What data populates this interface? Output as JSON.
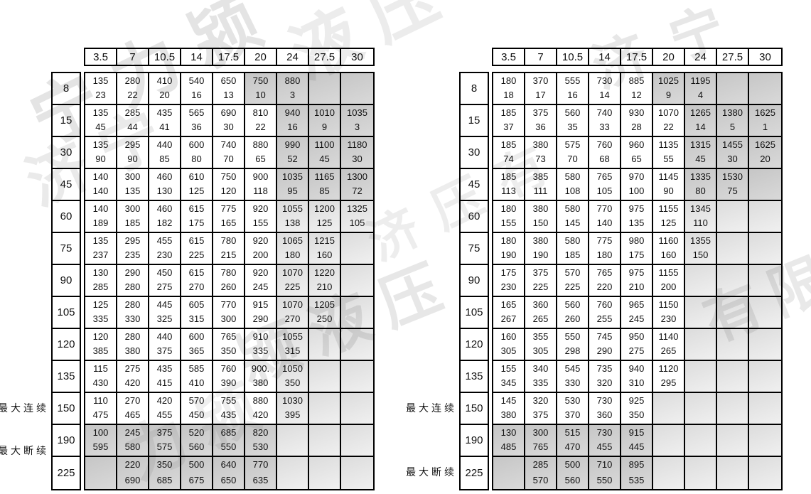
{
  "watermarks": {
    "items": [
      {
        "text": "宁力颍"
      },
      {
        "text": "液压"
      },
      {
        "text": "济宁"
      },
      {
        "text": "济宁"
      },
      {
        "text": "颍液压"
      },
      {
        "text": "有限"
      },
      {
        "text": "济压有"
      },
      {
        "text": "力颍"
      }
    ]
  },
  "chart_data": [
    {
      "type": "table",
      "title": "",
      "col_headers": [
        "3.5",
        "7",
        "10.5",
        "14",
        "17.5",
        "20",
        "24",
        "27.5",
        "30"
      ],
      "row_headers": [
        "8",
        "15",
        "30",
        "45",
        "60",
        "75",
        "90",
        "105",
        "120",
        "135",
        "150",
        "190",
        "225"
      ],
      "annotations": {
        "continuous": "最大连续",
        "intermittent": "最大断续"
      },
      "cell_format": "[top_value, bottom_value, shade] shade:0=white,1=light-gray,2=gray",
      "rows": [
        [
          [
            "135",
            "23",
            0
          ],
          [
            "280",
            "22",
            0
          ],
          [
            "410",
            "20",
            0
          ],
          [
            "540",
            "16",
            0
          ],
          [
            "650",
            "13",
            0
          ],
          [
            "750",
            "10",
            2
          ],
          [
            "880",
            "3",
            2
          ],
          [
            "",
            "",
            2
          ],
          [
            "",
            "",
            2
          ]
        ],
        [
          [
            "135",
            "45",
            0
          ],
          [
            "285",
            "44",
            0
          ],
          [
            "435",
            "41",
            0
          ],
          [
            "565",
            "36",
            0
          ],
          [
            "690",
            "30",
            0
          ],
          [
            "810",
            "22",
            0
          ],
          [
            "940",
            "16",
            2
          ],
          [
            "1010",
            "9",
            2
          ],
          [
            "1035",
            "3",
            2
          ]
        ],
        [
          [
            "135",
            "90",
            0
          ],
          [
            "295",
            "90",
            0
          ],
          [
            "440",
            "85",
            0
          ],
          [
            "600",
            "80",
            0
          ],
          [
            "740",
            "70",
            0
          ],
          [
            "880",
            "65",
            0
          ],
          [
            "990",
            "52",
            2
          ],
          [
            "1100",
            "45",
            2
          ],
          [
            "1180",
            "30",
            2
          ]
        ],
        [
          [
            "140",
            "140",
            0
          ],
          [
            "300",
            "135",
            0
          ],
          [
            "460",
            "130",
            0
          ],
          [
            "610",
            "125",
            0
          ],
          [
            "750",
            "120",
            0
          ],
          [
            "900",
            "118",
            0
          ],
          [
            "1035",
            "95",
            2
          ],
          [
            "1165",
            "85",
            2
          ],
          [
            "1300",
            "72",
            2
          ]
        ],
        [
          [
            "140",
            "189",
            0
          ],
          [
            "300",
            "185",
            0
          ],
          [
            "460",
            "182",
            0
          ],
          [
            "615",
            "175",
            0
          ],
          [
            "775",
            "165",
            0
          ],
          [
            "920",
            "155",
            0
          ],
          [
            "1055",
            "138",
            1
          ],
          [
            "1200",
            "125",
            1
          ],
          [
            "1325",
            "105",
            1
          ]
        ],
        [
          [
            "135",
            "237",
            0
          ],
          [
            "295",
            "235",
            0
          ],
          [
            "455",
            "230",
            0
          ],
          [
            "615",
            "225",
            0
          ],
          [
            "780",
            "215",
            0
          ],
          [
            "920",
            "200",
            0
          ],
          [
            "1065",
            "180",
            1
          ],
          [
            "1215",
            "160",
            1
          ],
          [
            "",
            "",
            1
          ]
        ],
        [
          [
            "130",
            "285",
            0
          ],
          [
            "290",
            "280",
            0
          ],
          [
            "450",
            "275",
            0
          ],
          [
            "615",
            "270",
            0
          ],
          [
            "780",
            "260",
            0
          ],
          [
            "920",
            "245",
            0
          ],
          [
            "1070",
            "225",
            1
          ],
          [
            "1220",
            "210",
            1
          ],
          [
            "",
            "",
            1
          ]
        ],
        [
          [
            "125",
            "335",
            0
          ],
          [
            "280",
            "330",
            0
          ],
          [
            "445",
            "325",
            0
          ],
          [
            "605",
            "315",
            0
          ],
          [
            "770",
            "300",
            0
          ],
          [
            "915",
            "290",
            0
          ],
          [
            "1070",
            "270",
            1
          ],
          [
            "1205",
            "250",
            1
          ],
          [
            "",
            "",
            1
          ]
        ],
        [
          [
            "120",
            "385",
            0
          ],
          [
            "280",
            "380",
            0
          ],
          [
            "440",
            "375",
            0
          ],
          [
            "600",
            "365",
            0
          ],
          [
            "765",
            "350",
            0
          ],
          [
            "910",
            "335",
            0
          ],
          [
            "1055",
            "315",
            1
          ],
          [
            "",
            "",
            1
          ],
          [
            "",
            "",
            1
          ]
        ],
        [
          [
            "115",
            "430",
            0
          ],
          [
            "275",
            "420",
            0
          ],
          [
            "435",
            "415",
            0
          ],
          [
            "585",
            "410",
            0
          ],
          [
            "760",
            "390",
            0
          ],
          [
            "900.",
            "380",
            0
          ],
          [
            "1050",
            "350",
            1
          ],
          [
            "",
            "",
            1
          ],
          [
            "",
            "",
            1
          ]
        ],
        [
          [
            "110",
            "475",
            0
          ],
          [
            "270",
            "465",
            0
          ],
          [
            "420",
            "455",
            0
          ],
          [
            "570",
            "450",
            0
          ],
          [
            "755",
            "435",
            0
          ],
          [
            "880",
            "420",
            0
          ],
          [
            "1030",
            "395",
            1
          ],
          [
            "",
            "",
            1
          ],
          [
            "",
            "",
            1
          ]
        ],
        [
          [
            "100",
            "595",
            2
          ],
          [
            "245",
            "580",
            2
          ],
          [
            "375",
            "575",
            2
          ],
          [
            "520",
            "560",
            2
          ],
          [
            "685",
            "550",
            2
          ],
          [
            "820",
            "530",
            2
          ],
          [
            "",
            "",
            1
          ],
          [
            "",
            "",
            1
          ],
          [
            "",
            "",
            1
          ]
        ],
        [
          [
            "",
            "",
            2
          ],
          [
            "220",
            "690",
            2
          ],
          [
            "350",
            "685",
            2
          ],
          [
            "500",
            "675",
            2
          ],
          [
            "640",
            "650",
            2
          ],
          [
            "770",
            "635",
            2
          ],
          [
            "",
            "",
            1
          ],
          [
            "",
            "",
            1
          ],
          [
            "",
            "",
            1
          ]
        ]
      ]
    },
    {
      "type": "table",
      "title": "",
      "col_headers": [
        "3.5",
        "7",
        "10.5",
        "14",
        "17.5",
        "20",
        "24",
        "27.5",
        "30"
      ],
      "row_headers": [
        "8",
        "15",
        "30",
        "45",
        "60",
        "75",
        "90",
        "105",
        "120",
        "135",
        "150",
        "190",
        "225"
      ],
      "annotations": {
        "continuous": "最大连续",
        "intermittent": "最大断续"
      },
      "cell_format": "[top_value, bottom_value, shade] shade:0=white,1=light-gray,2=gray",
      "rows": [
        [
          [
            "180",
            "18",
            0
          ],
          [
            "370",
            "17",
            0
          ],
          [
            "555",
            "16",
            0
          ],
          [
            "730",
            "14",
            0
          ],
          [
            "885",
            "12",
            0
          ],
          [
            "1025",
            "9",
            2
          ],
          [
            "1195",
            "4",
            2
          ],
          [
            "",
            "",
            2
          ],
          [
            "",
            "",
            2
          ]
        ],
        [
          [
            "185",
            "37",
            0
          ],
          [
            "375",
            "36",
            0
          ],
          [
            "560",
            "35",
            0
          ],
          [
            "740",
            "33",
            0
          ],
          [
            "930",
            "28",
            0
          ],
          [
            "1070",
            "22",
            0
          ],
          [
            "1265",
            "14",
            2
          ],
          [
            "1380",
            "5",
            2
          ],
          [
            "1625",
            "1",
            2
          ]
        ],
        [
          [
            "185",
            "74",
            0
          ],
          [
            "380",
            "73",
            0
          ],
          [
            "575",
            "70",
            0
          ],
          [
            "760",
            "68",
            0
          ],
          [
            "960",
            "65",
            0
          ],
          [
            "1135",
            "55",
            0
          ],
          [
            "1315",
            "45",
            2
          ],
          [
            "1455",
            "30",
            2
          ],
          [
            "1625",
            "20",
            2
          ]
        ],
        [
          [
            "185",
            "113",
            0
          ],
          [
            "385",
            "111",
            0
          ],
          [
            "580",
            "108",
            0
          ],
          [
            "765",
            "105",
            0
          ],
          [
            "970",
            "100",
            0
          ],
          [
            "1145",
            "90",
            0
          ],
          [
            "1335",
            "80",
            2
          ],
          [
            "1530",
            "75",
            2
          ],
          [
            "",
            "",
            2
          ]
        ],
        [
          [
            "180",
            "155",
            0
          ],
          [
            "380",
            "150",
            0
          ],
          [
            "580",
            "145",
            0
          ],
          [
            "770",
            "140",
            0
          ],
          [
            "975",
            "135",
            0
          ],
          [
            "1155",
            "125",
            0
          ],
          [
            "1345",
            "110",
            1
          ],
          [
            "",
            "",
            1
          ],
          [
            "",
            "",
            1
          ]
        ],
        [
          [
            "180",
            "190",
            0
          ],
          [
            "380",
            "190",
            0
          ],
          [
            "580",
            "185",
            0
          ],
          [
            "775",
            "180",
            0
          ],
          [
            "980",
            "175",
            0
          ],
          [
            "1160",
            "160",
            0
          ],
          [
            "1355",
            "150",
            1
          ],
          [
            "",
            "",
            1
          ],
          [
            "",
            "",
            1
          ]
        ],
        [
          [
            "175",
            "230",
            0
          ],
          [
            "375",
            "225",
            0
          ],
          [
            "570",
            "225",
            0
          ],
          [
            "765",
            "220",
            0
          ],
          [
            "975",
            "210",
            0
          ],
          [
            "1155",
            "200",
            0
          ],
          [
            "",
            "",
            1
          ],
          [
            "",
            "",
            1
          ],
          [
            "",
            "",
            1
          ]
        ],
        [
          [
            "165",
            "267",
            0
          ],
          [
            "360",
            "265",
            0
          ],
          [
            "560",
            "260",
            0
          ],
          [
            "760",
            "255",
            0
          ],
          [
            "965",
            "245",
            0
          ],
          [
            "1150",
            "230",
            0
          ],
          [
            "",
            "",
            1
          ],
          [
            "",
            "",
            1
          ],
          [
            "",
            "",
            1
          ]
        ],
        [
          [
            "160",
            "305",
            0
          ],
          [
            "355",
            "305",
            0
          ],
          [
            "550",
            "298",
            0
          ],
          [
            "745",
            "290",
            0
          ],
          [
            "950",
            "275",
            0
          ],
          [
            "1140",
            "265",
            0
          ],
          [
            "",
            "",
            1
          ],
          [
            "",
            "",
            1
          ],
          [
            "",
            "",
            1
          ]
        ],
        [
          [
            "155",
            "345",
            0
          ],
          [
            "340",
            "335",
            0
          ],
          [
            "545",
            "330",
            0
          ],
          [
            "735",
            "320",
            0
          ],
          [
            "940",
            "310",
            0
          ],
          [
            "1120",
            "295",
            0
          ],
          [
            "",
            "",
            1
          ],
          [
            "",
            "",
            1
          ],
          [
            "",
            "",
            1
          ]
        ],
        [
          [
            "145",
            "380",
            0
          ],
          [
            "320",
            "375",
            0
          ],
          [
            "530",
            "370",
            0
          ],
          [
            "730",
            "360",
            0
          ],
          [
            "925",
            "350",
            0
          ],
          [
            "",
            "",
            1
          ],
          [
            "",
            "",
            1
          ],
          [
            "",
            "",
            1
          ],
          [
            "",
            "",
            1
          ]
        ],
        [
          [
            "130",
            "485",
            2
          ],
          [
            "300",
            "765",
            2
          ],
          [
            "515",
            "470",
            2
          ],
          [
            "730",
            "455",
            2
          ],
          [
            "915",
            "445",
            2
          ],
          [
            "",
            "",
            1
          ],
          [
            "",
            "",
            1
          ],
          [
            "",
            "",
            1
          ],
          [
            "",
            "",
            1
          ]
        ],
        [
          [
            "",
            "",
            2
          ],
          [
            "285",
            "570",
            2
          ],
          [
            "500",
            "560",
            2
          ],
          [
            "710",
            "550",
            2
          ],
          [
            "895",
            "535",
            2
          ],
          [
            "",
            "",
            1
          ],
          [
            "",
            "",
            1
          ],
          [
            "",
            "",
            1
          ],
          [
            "",
            "",
            1
          ]
        ]
      ]
    }
  ]
}
